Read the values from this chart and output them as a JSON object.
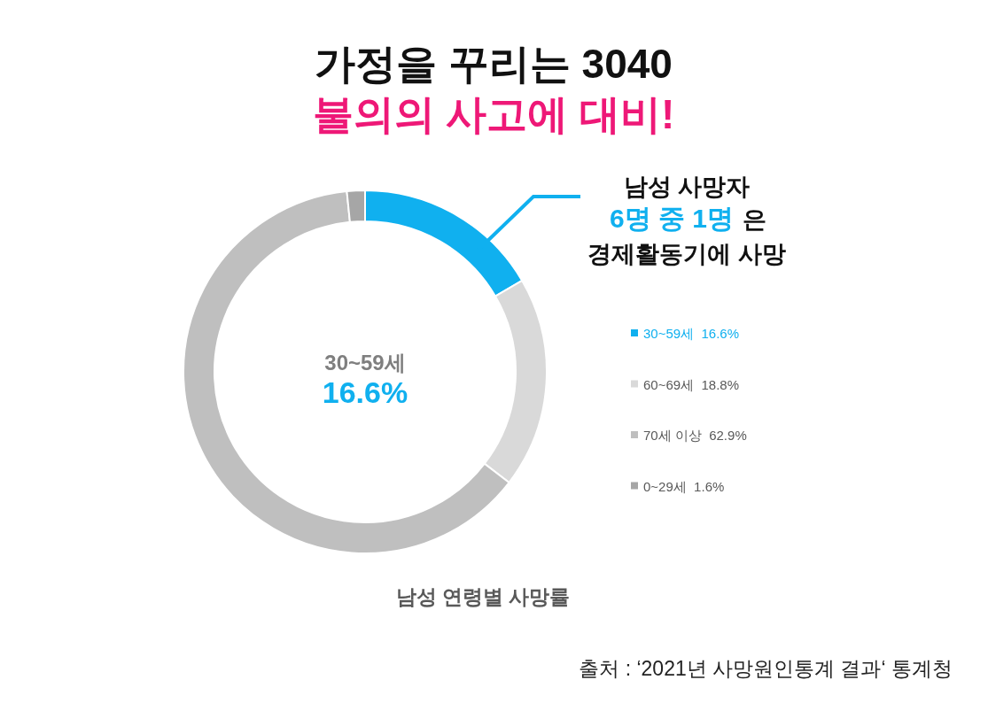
{
  "chart_data": {
    "type": "donut",
    "title": "가정을 꾸리는 3040",
    "subtitle": "불의의 사고에 대비!",
    "categories": [
      "30~59세  16.6%",
      "60~69세  18.8%",
      "70세 이상  62.9%",
      "0~29세  1.6%"
    ],
    "values": [
      16.6,
      18.8,
      62.9,
      1.6
    ],
    "colors": [
      "#10b0ef",
      "#d9d9d9",
      "#bfbfbf",
      "#a6a6a6"
    ],
    "legend": "right",
    "annotations": [
      "남성 사망자",
      "6명 중 1명",
      "은",
      "경제활동기에 사망",
      "30~59세",
      "16.6%",
      "남성 연령별 사망률",
      "출처 : ‘2021년 사망원인통계 결과‘ 통계청"
    ]
  }
}
